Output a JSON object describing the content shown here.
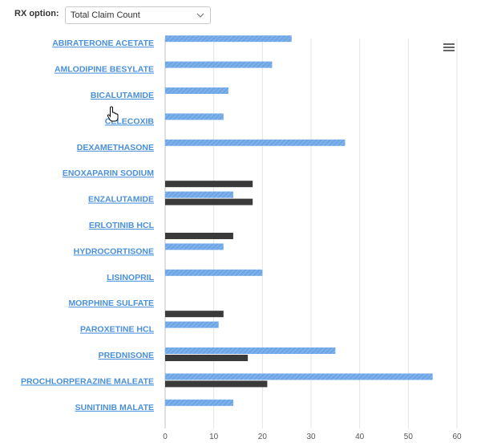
{
  "rx_option": {
    "label": "RX option:",
    "selected": "Total Claim Count"
  },
  "chart_data": {
    "type": "bar",
    "orientation": "horizontal",
    "categories": [
      "ABIRATERONE ACETATE",
      "AMLODIPINE BESYLATE",
      "BICALUTAMIDE",
      "CELECOXIB",
      "DEXAMETHASONE",
      "ENOXAPARIN SODIUM",
      "ENZALUTAMIDE",
      "ERLOTINIB HCL",
      "HYDROCORTISONE",
      "LISINOPRIL",
      "MORPHINE SULFATE",
      "PAROXETINE HCL",
      "PREDNISONE",
      "PROCHLORPERAZINE MALEATE",
      "SUNITINIB MALATE"
    ],
    "series": [
      {
        "color": "#6ea6e6",
        "values": [
          26,
          22,
          13,
          12,
          37,
          null,
          14,
          null,
          12,
          20,
          null,
          11,
          35,
          55,
          14
        ]
      },
      {
        "color": "#3a3a3a",
        "values": [
          null,
          null,
          null,
          null,
          null,
          18,
          18,
          14,
          null,
          null,
          12,
          null,
          17,
          21,
          null
        ]
      }
    ],
    "xlim": [
      0,
      60
    ],
    "xticks": [
      "0",
      "10",
      "20",
      "30",
      "40",
      "50",
      "60"
    ],
    "grid": true,
    "legend": "none"
  }
}
